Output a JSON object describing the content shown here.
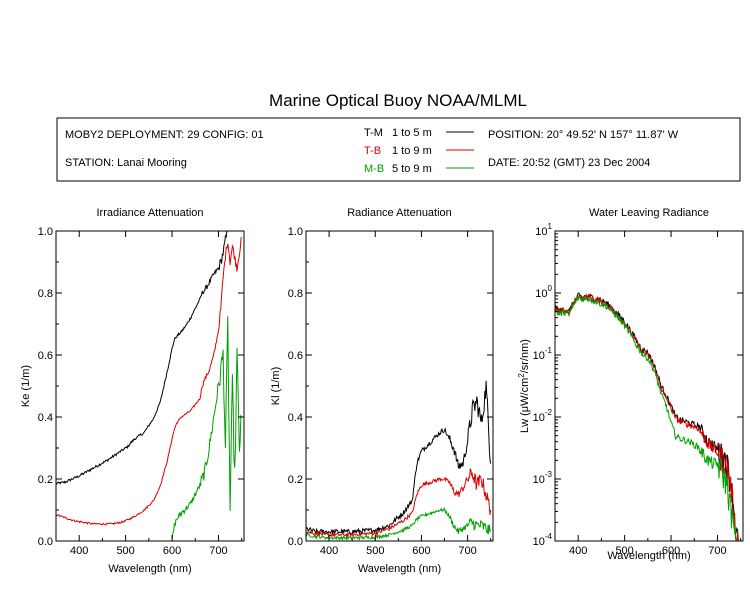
{
  "title": "Marine Optical Buoy NOAA/MLML",
  "header": {
    "deployment": "MOBY2 DEPLOYMENT: 29 CONFIG: 01",
    "station": "STATION: Lanai Mooring",
    "position": "POSITION: 20° 49.52' N   157° 11.87' W",
    "date": "DATE: 20:52 (GMT) 23 Dec 2004",
    "legend": [
      {
        "code": "T-M",
        "range": "1 to 5  m",
        "color": "#000000"
      },
      {
        "code": "T-B",
        "range": "1 to 9  m",
        "color": "#dd0000"
      },
      {
        "code": "M-B",
        "range": "5 to 9  m",
        "color": "#00a000"
      }
    ]
  },
  "chart_data": [
    {
      "type": "line",
      "title": "Irradiance Attenuation",
      "xlabel": "Wavelength (nm)",
      "ylabel": "Ke  (1/m)",
      "xlim": [
        350,
        755
      ],
      "ylim": [
        0,
        1.0
      ],
      "xticks": [
        "400",
        "500",
        "600",
        "700"
      ],
      "yticks": [
        "0.0",
        "0.2",
        "0.4",
        "0.6",
        "0.8",
        "1.0"
      ],
      "series": [
        {
          "name": "T-M",
          "color": "#000000",
          "noise": 0.004,
          "x": [
            350,
            370,
            400,
            430,
            460,
            490,
            505,
            510,
            520,
            540,
            560,
            575,
            590,
            600,
            605,
            610,
            620,
            630,
            640,
            650,
            660,
            665,
            675,
            690,
            700,
            705,
            710,
            715,
            720
          ],
          "y": [
            0.185,
            0.19,
            0.21,
            0.235,
            0.26,
            0.29,
            0.305,
            0.315,
            0.33,
            0.35,
            0.395,
            0.45,
            0.55,
            0.62,
            0.65,
            0.66,
            0.675,
            0.695,
            0.72,
            0.75,
            0.78,
            0.8,
            0.82,
            0.86,
            0.88,
            0.9,
            0.93,
            0.97,
            1.0
          ]
        },
        {
          "name": "T-B",
          "color": "#dd0000",
          "noise": 0.003,
          "x": [
            350,
            370,
            390,
            410,
            430,
            450,
            470,
            490,
            500,
            520,
            540,
            560,
            575,
            590,
            600,
            605,
            610,
            620,
            640,
            660,
            665,
            670,
            680,
            690,
            700,
            705,
            710,
            715,
            720,
            725,
            730,
            740,
            750
          ],
          "y": [
            0.085,
            0.075,
            0.065,
            0.06,
            0.055,
            0.055,
            0.055,
            0.06,
            0.065,
            0.08,
            0.1,
            0.13,
            0.18,
            0.26,
            0.33,
            0.36,
            0.38,
            0.4,
            0.42,
            0.46,
            0.5,
            0.52,
            0.55,
            0.6,
            0.68,
            0.75,
            0.85,
            0.92,
            0.97,
            0.9,
            0.95,
            0.88,
            0.98
          ]
        },
        {
          "name": "M-B",
          "color": "#00a000",
          "noise": 0.01,
          "x": [
            600,
            605,
            610,
            620,
            640,
            660,
            670,
            680,
            690,
            700,
            705,
            710,
            715,
            720,
            725,
            730,
            735,
            740,
            745,
            750
          ],
          "y": [
            0.0,
            0.05,
            0.07,
            0.09,
            0.12,
            0.18,
            0.22,
            0.3,
            0.4,
            0.5,
            0.55,
            0.6,
            0.3,
            0.7,
            0.1,
            0.5,
            0.2,
            0.6,
            0.3,
            0.4
          ]
        }
      ]
    },
    {
      "type": "line",
      "title": "Radiance Attenuation",
      "xlabel": "Wavelength (nm)",
      "ylabel": "Kl  (1/m)",
      "xlim": [
        350,
        755
      ],
      "ylim": [
        0,
        1.0
      ],
      "xticks": [
        "400",
        "500",
        "600",
        "700"
      ],
      "yticks": [
        "0.0",
        "0.2",
        "0.4",
        "0.6",
        "0.8",
        "1.0"
      ],
      "series": [
        {
          "name": "T-M",
          "color": "#000000",
          "noise": 0.008,
          "x": [
            350,
            370,
            400,
            450,
            500,
            530,
            560,
            580,
            590,
            600,
            620,
            640,
            650,
            660,
            670,
            680,
            690,
            700,
            710,
            720,
            730,
            740,
            750
          ],
          "y": [
            0.04,
            0.03,
            0.03,
            0.03,
            0.035,
            0.05,
            0.09,
            0.13,
            0.25,
            0.29,
            0.32,
            0.35,
            0.36,
            0.33,
            0.3,
            0.24,
            0.25,
            0.32,
            0.42,
            0.45,
            0.38,
            0.5,
            0.25
          ]
        },
        {
          "name": "T-B",
          "color": "#dd0000",
          "noise": 0.006,
          "x": [
            350,
            370,
            400,
            450,
            500,
            530,
            560,
            580,
            590,
            600,
            620,
            640,
            650,
            660,
            670,
            680,
            690,
            700,
            710,
            720,
            730,
            740,
            750
          ],
          "y": [
            0.03,
            0.025,
            0.02,
            0.02,
            0.025,
            0.04,
            0.065,
            0.09,
            0.15,
            0.18,
            0.19,
            0.2,
            0.2,
            0.19,
            0.16,
            0.15,
            0.17,
            0.2,
            0.22,
            0.18,
            0.2,
            0.15,
            0.1
          ]
        },
        {
          "name": "M-B",
          "color": "#00a000",
          "noise": 0.005,
          "x": [
            350,
            370,
            400,
            450,
            500,
            530,
            560,
            580,
            590,
            600,
            620,
            640,
            650,
            660,
            670,
            680,
            690,
            700,
            710,
            720,
            730,
            740,
            750
          ],
          "y": [
            0.02,
            0.015,
            0.01,
            0.01,
            0.012,
            0.02,
            0.035,
            0.05,
            0.07,
            0.08,
            0.09,
            0.1,
            0.1,
            0.08,
            0.05,
            0.03,
            0.04,
            0.05,
            0.06,
            0.05,
            0.05,
            0.04,
            0.03
          ]
        }
      ]
    },
    {
      "type": "line",
      "title": "Water Leaving Radiance",
      "xlabel": "Wavelength (nm)",
      "ylabel_parts": [
        "Lw  (",
        "μ",
        "W/cm",
        "2",
        "/sr/nm)"
      ],
      "xlim": [
        350,
        755
      ],
      "ylim": [
        0.0001,
        10
      ],
      "yscale": "log",
      "xticks": [
        "400",
        "500",
        "600",
        "700"
      ],
      "yticks": [
        {
          "base": "10",
          "exp": "1"
        },
        {
          "base": "10",
          "exp": "0"
        },
        {
          "base": "10",
          "exp": "-1"
        },
        {
          "base": "10",
          "exp": "-2"
        },
        {
          "base": "10",
          "exp": "-3"
        },
        {
          "base": "10",
          "exp": "-4"
        }
      ],
      "series": [
        {
          "name": "T-M",
          "color": "#000000",
          "noise": 0.04,
          "x": [
            350,
            360,
            370,
            380,
            390,
            400,
            410,
            420,
            440,
            460,
            480,
            500,
            520,
            530,
            540,
            550,
            560,
            570,
            580,
            590,
            600,
            610,
            620,
            640,
            660,
            670,
            680,
            690,
            700,
            705,
            710,
            720,
            730,
            740,
            745
          ],
          "y": [
            0.6,
            0.5,
            0.55,
            0.5,
            0.7,
            0.9,
            0.85,
            0.9,
            0.8,
            0.7,
            0.5,
            0.35,
            0.2,
            0.15,
            0.12,
            0.11,
            0.08,
            0.05,
            0.03,
            0.022,
            0.015,
            0.01,
            0.009,
            0.008,
            0.007,
            0.0055,
            0.004,
            0.0035,
            0.003,
            0.0028,
            0.0025,
            0.002,
            0.0008,
            0.00015,
            0.0001
          ]
        },
        {
          "name": "T-B",
          "color": "#dd0000",
          "noise": 0.04,
          "x": [
            350,
            360,
            370,
            380,
            390,
            400,
            410,
            420,
            440,
            460,
            480,
            500,
            520,
            530,
            540,
            550,
            560,
            570,
            580,
            590,
            600,
            610,
            620,
            640,
            660,
            670,
            680,
            690,
            700,
            705,
            710,
            720,
            730,
            740,
            745
          ],
          "y": [
            0.58,
            0.48,
            0.53,
            0.48,
            0.68,
            0.88,
            0.83,
            0.87,
            0.78,
            0.68,
            0.48,
            0.33,
            0.19,
            0.14,
            0.11,
            0.1,
            0.075,
            0.046,
            0.028,
            0.02,
            0.014,
            0.0095,
            0.0085,
            0.0075,
            0.0065,
            0.005,
            0.0037,
            0.0032,
            0.0028,
            0.0026,
            0.0023,
            0.0018,
            0.0007,
            0.00013,
            0.0001
          ]
        },
        {
          "name": "M-B",
          "color": "#00a000",
          "noise": 0.04,
          "x": [
            350,
            360,
            370,
            380,
            390,
            400,
            410,
            420,
            440,
            460,
            480,
            500,
            520,
            530,
            540,
            550,
            560,
            570,
            580,
            590,
            600,
            610,
            620,
            640,
            660,
            670,
            680,
            690,
            700,
            705,
            710,
            720,
            730,
            740
          ],
          "y": [
            0.55,
            0.45,
            0.5,
            0.45,
            0.65,
            0.85,
            0.8,
            0.83,
            0.72,
            0.62,
            0.45,
            0.3,
            0.17,
            0.13,
            0.1,
            0.09,
            0.065,
            0.04,
            0.022,
            0.015,
            0.008,
            0.005,
            0.0045,
            0.004,
            0.0032,
            0.0025,
            0.002,
            0.0018,
            0.0017,
            0.0016,
            0.0013,
            0.0009,
            0.0003,
            0.0001
          ]
        }
      ]
    }
  ]
}
